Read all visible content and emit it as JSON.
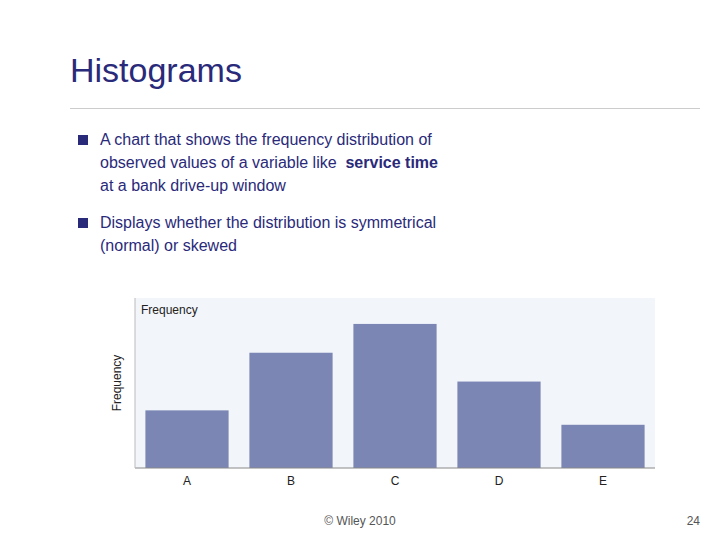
{
  "title": "Histograms",
  "bullets": [
    {
      "lines": [
        [
          {
            "text": "A chart that shows the frequency distribution of"
          }
        ],
        [
          {
            "text": "observed values of a variable like  "
          },
          {
            "text": "service time",
            "bold": true
          }
        ],
        [
          {
            "text": "at a bank drive-up window"
          }
        ]
      ]
    },
    {
      "lines": [
        [
          {
            "text": "Displays whether the distribution is symmetrical"
          }
        ],
        [
          {
            "text": "(normal) or skewed"
          }
        ]
      ]
    }
  ],
  "footer": {
    "text": "© Wiley 2010",
    "page": "24"
  },
  "chart_data": {
    "type": "bar",
    "title": "Frequency",
    "ylabel": "Frequency",
    "categories": [
      "A",
      "B",
      "C",
      "D",
      "E"
    ],
    "values": [
      2,
      4,
      5,
      3,
      1.5
    ],
    "color": "#7B86B5",
    "ylim": [
      0,
      5.9
    ],
    "tick_labels": "x",
    "grid": false
  }
}
